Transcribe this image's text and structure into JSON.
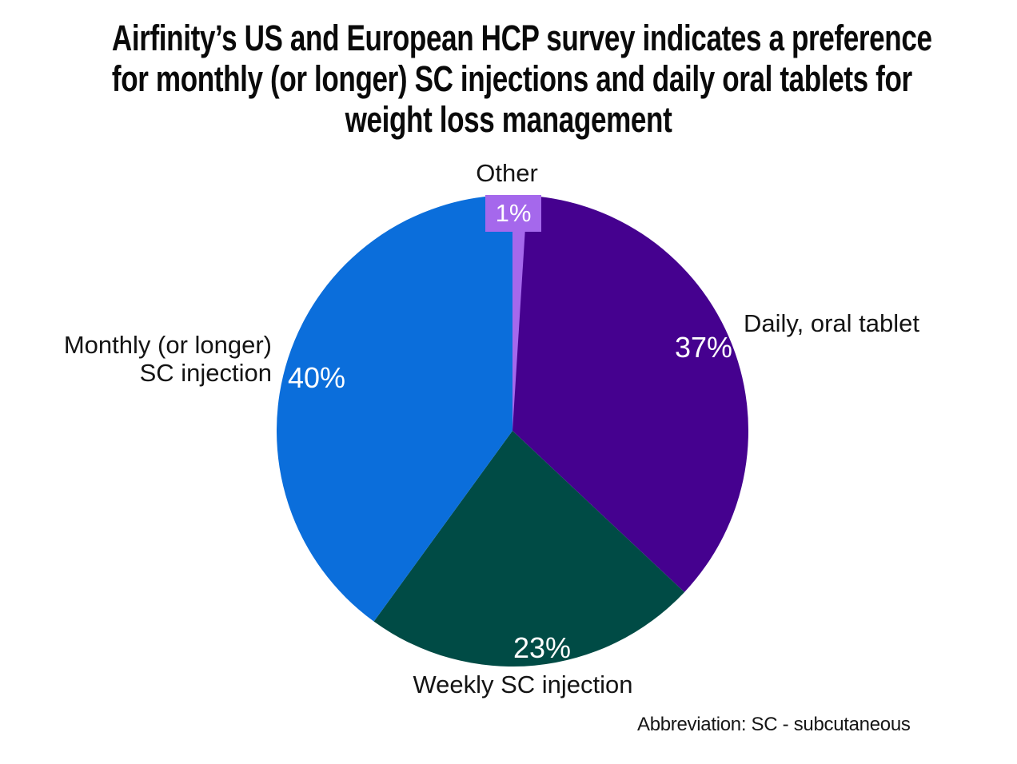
{
  "title_lines": [
    "Airfinity’s US and European HCP survey indicates a preference",
    "for monthly (or longer) SC injections and daily oral tablets for",
    "weight loss management"
  ],
  "chart_data": {
    "type": "pie",
    "title": "Airfinity’s US and European HCP survey indicates a preference for monthly (or longer) SC injections and daily oral tablets for weight loss management",
    "start_angle_deg": 0,
    "direction": "clockwise",
    "slices": [
      {
        "label": "Daily, oral tablet",
        "value": 37,
        "value_label": "37%",
        "color": "#45018F"
      },
      {
        "label": "Weekly SC injection",
        "value": 23,
        "value_label": "23%",
        "color": "#004B45"
      },
      {
        "label": "Monthly (or longer) SC injection",
        "value": 40,
        "value_label": "40%",
        "color": "#0B6EDB"
      },
      {
        "label": "Other",
        "value": 1,
        "value_label": "1%",
        "color": "#A568EC"
      }
    ],
    "value_label_color": "#FFFFFF",
    "label_color": "#141414",
    "legend": "none",
    "annotation": "Abbreviation: SC - subcutaneous"
  }
}
